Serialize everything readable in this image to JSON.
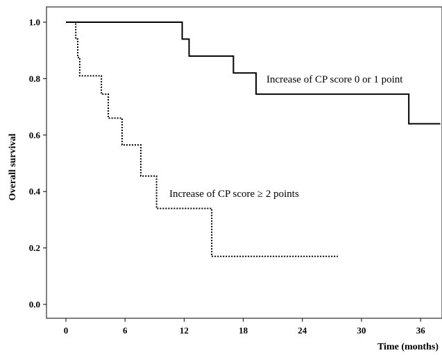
{
  "chart_data": {
    "type": "line",
    "subtype": "kaplan-meier step",
    "title": "",
    "xlabel": "Time (months)",
    "ylabel": "Overall survival",
    "xlim": [
      0,
      38
    ],
    "ylim": [
      0,
      1.0
    ],
    "x_ticks": [
      0,
      6,
      12,
      18,
      24,
      30,
      36
    ],
    "y_ticks": [
      "0.0",
      "0.2",
      "0.4",
      "0.6",
      "0.8",
      "1.0"
    ],
    "grid": false,
    "legend": "none",
    "series": [
      {
        "label": "Increase of CP score 0 or 1 point",
        "line_style": "solid",
        "color": "#000000",
        "steps": [
          [
            0,
            1.0
          ],
          [
            11.8,
            0.94
          ],
          [
            12.5,
            0.88
          ],
          [
            17.0,
            0.82
          ],
          [
            19.3,
            0.745
          ],
          [
            34.8,
            0.64
          ],
          [
            38,
            0.64
          ]
        ]
      },
      {
        "label": "Increase of CP score ≥ 2 points",
        "line_style": "dotted",
        "color": "#000000",
        "steps": [
          [
            0,
            1.0
          ],
          [
            1.0,
            0.94
          ],
          [
            1.2,
            0.875
          ],
          [
            1.4,
            0.81
          ],
          [
            3.6,
            0.745
          ],
          [
            4.3,
            0.66
          ],
          [
            5.7,
            0.565
          ],
          [
            7.6,
            0.455
          ],
          [
            9.2,
            0.34
          ],
          [
            14.8,
            0.17
          ],
          [
            27.6,
            0.17
          ]
        ]
      }
    ]
  }
}
